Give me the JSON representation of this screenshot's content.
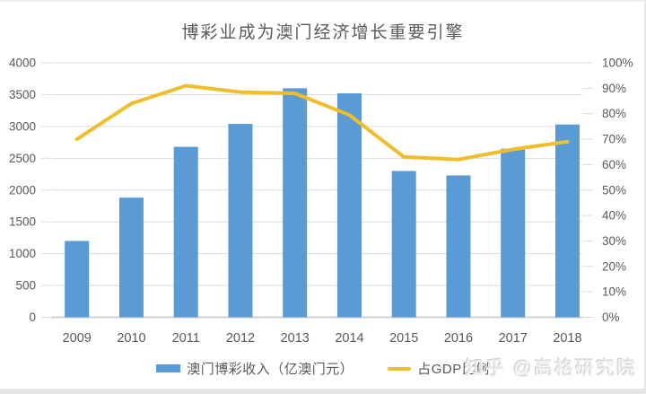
{
  "page": {
    "watermark": "知乎 @高格研究院",
    "background": "#ffffff",
    "frame_color": "#e5e5e5"
  },
  "chart_data": {
    "type": "combo-bar-line",
    "title": "博彩业成为澳门经济增长重要引擎",
    "categories": [
      "2009",
      "2010",
      "2011",
      "2012",
      "2013",
      "2014",
      "2015",
      "2016",
      "2017",
      "2018"
    ],
    "series": [
      {
        "name": "澳门博彩收入（亿澳门元）",
        "type": "bar",
        "axis": "left",
        "color": "#5B9BD5",
        "values": [
          1200,
          1880,
          2680,
          3040,
          3600,
          3520,
          2300,
          2230,
          2650,
          3030
        ]
      },
      {
        "name": "占GDP比例",
        "type": "line",
        "axis": "right",
        "color": "#F0BE2D",
        "values": [
          70,
          84,
          91,
          88.5,
          88,
          79.5,
          63,
          62,
          66,
          69
        ]
      }
    ],
    "left_axis": {
      "min": 0,
      "max": 4000,
      "step": 500,
      "ticks": [
        "0",
        "500",
        "1000",
        "1500",
        "2000",
        "2500",
        "3000",
        "3500",
        "4000"
      ]
    },
    "right_axis": {
      "min": 0,
      "max": 100,
      "step": 10,
      "ticks": [
        "0%",
        "10%",
        "20%",
        "30%",
        "40%",
        "50%",
        "60%",
        "70%",
        "80%",
        "90%",
        "100%"
      ]
    },
    "grid": true,
    "gridline_color": "#DCDCDC",
    "baseline_color": "#CFCFCF",
    "axis_text_color": "#595959",
    "legend_position": "bottom"
  }
}
